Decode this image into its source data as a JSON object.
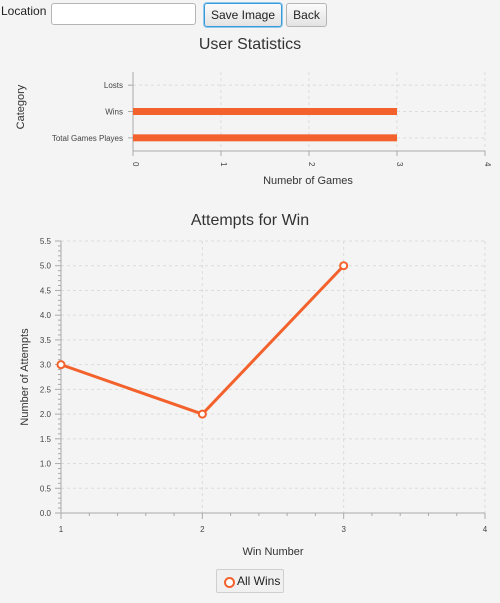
{
  "toolbar": {
    "location_label": "Location",
    "location_value": "",
    "save_label": "Save Image",
    "back_label": "Back"
  },
  "colors": {
    "series": "#f3622d",
    "grid": "#dcdcdc",
    "axis": "#aaaaaa"
  },
  "chart_data": [
    {
      "type": "bar",
      "orientation": "horizontal",
      "title": "User Statistics",
      "xlabel": "Numebr of Games",
      "ylabel": "Category",
      "categories": [
        "Total Games Playes",
        "Wins",
        "Losts"
      ],
      "values": [
        3,
        3,
        0
      ],
      "xlim": [
        0,
        4
      ],
      "xticks": [
        "0",
        "1",
        "2",
        "3",
        "4"
      ],
      "grid": true
    },
    {
      "type": "line",
      "title": "Attempts for Win",
      "xlabel": "Win Number",
      "ylabel": "Number of Attempts",
      "series": [
        {
          "name": "All Wins",
          "x": [
            1,
            2,
            3
          ],
          "values": [
            3.0,
            2.0,
            5.0
          ]
        }
      ],
      "xlim": [
        1,
        4
      ],
      "ylim": [
        0,
        5.5
      ],
      "xticks": [
        "1",
        "2",
        "3",
        "4"
      ],
      "yticks": [
        "0.0",
        "0.5",
        "1.0",
        "1.5",
        "2.0",
        "2.5",
        "3.0",
        "3.5",
        "4.0",
        "4.5",
        "5.0",
        "5.5"
      ],
      "grid": true,
      "legend": "bottom"
    }
  ]
}
